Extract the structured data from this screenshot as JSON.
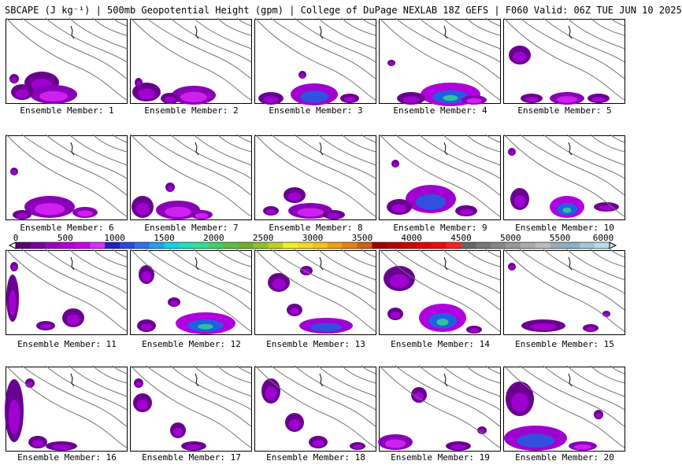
{
  "header": {
    "title": "SBCAPE (J kg⁻¹) | 500mb Geopotential Height (gpm) | College of DuPage NEXLAB 18Z GEFS | F060 Valid: 06Z TUE JUN 10 2025"
  },
  "colorbar": {
    "ticks": [
      "0",
      "500",
      "1000",
      "1500",
      "2000",
      "2500",
      "3000",
      "3500",
      "4000",
      "4500",
      "5000",
      "5500",
      "6000"
    ],
    "colors": [
      "#5a0078",
      "#7a00a0",
      "#9a00c0",
      "#b400dc",
      "#cc00f0",
      "#d830ff",
      "#2020c8",
      "#2848e0",
      "#3070f0",
      "#20a0f0",
      "#10d0e8",
      "#20e0c0",
      "#30e090",
      "#40d060",
      "#58c040",
      "#70b030",
      "#90c028",
      "#c0d020",
      "#f0f020",
      "#f8d820",
      "#f8c018",
      "#f0a010",
      "#e88010",
      "#d06010",
      "#a00000",
      "#b80000",
      "#d00000",
      "#e80000",
      "#f80808",
      "#ff2020",
      "#666666",
      "#777777",
      "#888888",
      "#999999",
      "#aaaaaa",
      "#bbbbbb",
      "#99aabb",
      "#88b0c8",
      "#a0c8d8",
      "#b8dce8"
    ]
  },
  "members": [
    {
      "label": "Ensemble Member: 1",
      "blobs": [
        [
          45,
          80,
          22,
          14,
          1
        ],
        [
          60,
          95,
          30,
          12,
          2
        ],
        [
          20,
          92,
          14,
          10,
          1
        ],
        [
          10,
          75,
          6,
          6,
          1
        ]
      ]
    },
    {
      "label": "Ensemble Member: 2",
      "blobs": [
        [
          20,
          92,
          18,
          12,
          1
        ],
        [
          80,
          96,
          28,
          12,
          2
        ],
        [
          50,
          100,
          12,
          7,
          1
        ],
        [
          10,
          80,
          5,
          6,
          1
        ]
      ]
    },
    {
      "label": "Ensemble Member: 3",
      "blobs": [
        [
          75,
          95,
          30,
          14,
          3
        ],
        [
          20,
          100,
          16,
          8,
          1
        ],
        [
          120,
          100,
          12,
          6,
          1
        ],
        [
          60,
          70,
          5,
          5,
          1
        ]
      ]
    },
    {
      "label": "Ensemble Member: 4",
      "blobs": [
        [
          90,
          95,
          38,
          15,
          4
        ],
        [
          40,
          100,
          18,
          8,
          1
        ],
        [
          120,
          102,
          16,
          6,
          2
        ],
        [
          15,
          55,
          5,
          4,
          1
        ]
      ]
    },
    {
      "label": "Ensemble Member: 5",
      "blobs": [
        [
          80,
          100,
          22,
          8,
          2
        ],
        [
          20,
          45,
          14,
          12,
          1
        ],
        [
          35,
          100,
          14,
          6,
          1
        ],
        [
          120,
          100,
          14,
          6,
          1
        ]
      ]
    },
    {
      "label": "Ensemble Member: 6",
      "blobs": [
        [
          55,
          90,
          32,
          14,
          2
        ],
        [
          20,
          100,
          12,
          6,
          1
        ],
        [
          100,
          97,
          16,
          7,
          2
        ],
        [
          10,
          45,
          5,
          5,
          1
        ]
      ]
    },
    {
      "label": "Ensemble Member: 7",
      "blobs": [
        [
          15,
          90,
          14,
          14,
          1
        ],
        [
          60,
          94,
          28,
          12,
          2
        ],
        [
          90,
          100,
          14,
          6,
          2
        ],
        [
          50,
          65,
          6,
          6,
          1
        ]
      ]
    },
    {
      "label": "Ensemble Member: 8",
      "blobs": [
        [
          50,
          75,
          14,
          10,
          1
        ],
        [
          70,
          95,
          28,
          10,
          2
        ],
        [
          100,
          100,
          14,
          6,
          1
        ],
        [
          20,
          95,
          10,
          6,
          1
        ]
      ]
    },
    {
      "label": "Ensemble Member: 9",
      "blobs": [
        [
          65,
          80,
          32,
          18,
          3
        ],
        [
          25,
          90,
          16,
          10,
          1
        ],
        [
          110,
          95,
          14,
          7,
          1
        ],
        [
          20,
          35,
          5,
          5,
          1
        ]
      ]
    },
    {
      "label": "Ensemble Member: 10",
      "blobs": [
        [
          80,
          90,
          22,
          14,
          4
        ],
        [
          20,
          80,
          12,
          14,
          1
        ],
        [
          130,
          90,
          16,
          6,
          1
        ],
        [
          10,
          20,
          5,
          5,
          1
        ]
      ]
    },
    {
      "label": "Ensemble Member: 11",
      "blobs": [
        [
          8,
          60,
          8,
          30,
          1
        ],
        [
          85,
          85,
          14,
          12,
          1
        ],
        [
          50,
          95,
          12,
          6,
          1
        ],
        [
          10,
          20,
          5,
          6,
          1
        ]
      ]
    },
    {
      "label": "Ensemble Member: 12",
      "blobs": [
        [
          95,
          92,
          38,
          14,
          4
        ],
        [
          20,
          30,
          10,
          12,
          1
        ],
        [
          55,
          65,
          8,
          6,
          1
        ],
        [
          20,
          95,
          12,
          8,
          1
        ]
      ]
    },
    {
      "label": "Ensemble Member: 13",
      "blobs": [
        [
          90,
          95,
          34,
          10,
          3
        ],
        [
          30,
          40,
          14,
          12,
          1
        ],
        [
          50,
          75,
          10,
          8,
          1
        ],
        [
          65,
          25,
          8,
          6,
          1
        ]
      ]
    },
    {
      "label": "Ensemble Member: 14",
      "blobs": [
        [
          80,
          85,
          30,
          18,
          4
        ],
        [
          25,
          35,
          20,
          16,
          1
        ],
        [
          20,
          80,
          10,
          8,
          1
        ],
        [
          120,
          100,
          10,
          5,
          1
        ]
      ]
    },
    {
      "label": "Ensemble Member: 15",
      "blobs": [
        [
          50,
          95,
          28,
          8,
          1
        ],
        [
          110,
          98,
          10,
          5,
          1
        ],
        [
          10,
          20,
          5,
          5,
          1
        ],
        [
          130,
          80,
          5,
          4,
          1
        ]
      ]
    },
    {
      "label": "Ensemble Member: 16",
      "blobs": [
        [
          10,
          55,
          12,
          40,
          1
        ],
        [
          40,
          95,
          12,
          8,
          1
        ],
        [
          70,
          100,
          20,
          6,
          1
        ],
        [
          30,
          20,
          6,
          6,
          1
        ]
      ]
    },
    {
      "label": "Ensemble Member: 17",
      "blobs": [
        [
          15,
          45,
          12,
          12,
          1
        ],
        [
          60,
          80,
          10,
          10,
          1
        ],
        [
          80,
          100,
          16,
          6,
          1
        ],
        [
          10,
          20,
          6,
          6,
          1
        ]
      ]
    },
    {
      "label": "Ensemble Member: 18",
      "blobs": [
        [
          20,
          30,
          12,
          16,
          1
        ],
        [
          50,
          70,
          12,
          12,
          1
        ],
        [
          80,
          95,
          12,
          8,
          1
        ],
        [
          130,
          100,
          10,
          5,
          1
        ]
      ]
    },
    {
      "label": "Ensemble Member: 19",
      "blobs": [
        [
          20,
          95,
          22,
          10,
          2
        ],
        [
          100,
          100,
          16,
          6,
          1
        ],
        [
          50,
          35,
          10,
          10,
          1
        ],
        [
          130,
          80,
          6,
          5,
          1
        ]
      ]
    },
    {
      "label": "Ensemble Member: 20",
      "blobs": [
        [
          40,
          90,
          40,
          16,
          3
        ],
        [
          20,
          40,
          18,
          22,
          1
        ],
        [
          100,
          100,
          18,
          6,
          2
        ],
        [
          120,
          60,
          6,
          6,
          1
        ]
      ]
    }
  ]
}
